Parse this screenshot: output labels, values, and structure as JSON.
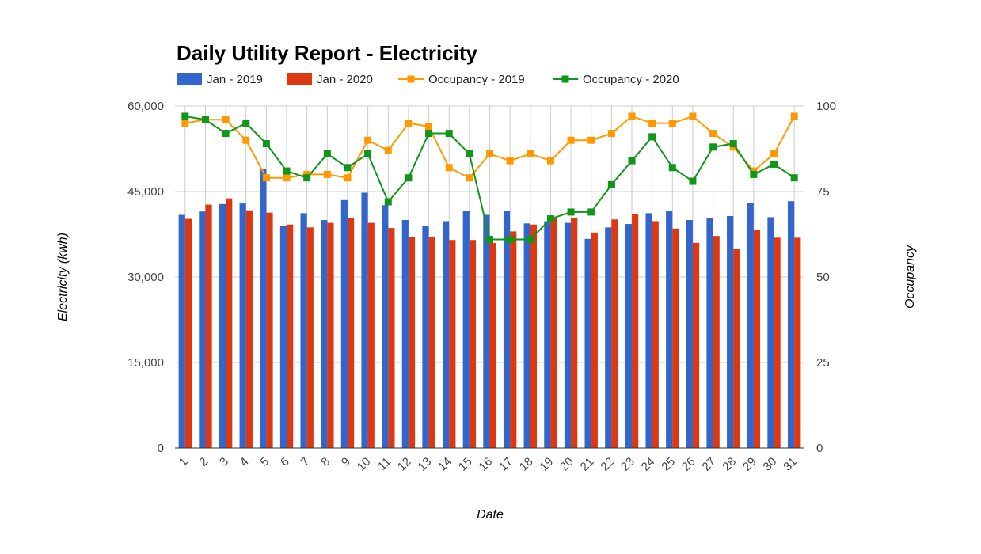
{
  "chart_data": {
    "type": "bar",
    "title": "Daily Utility Report - Electricity",
    "xlabel": "Date",
    "ylabel": "Electricity (kwh)",
    "y2label": "Occupancy",
    "categories": [
      "1",
      "2",
      "3",
      "4",
      "5",
      "6",
      "7",
      "8",
      "9",
      "10",
      "11",
      "12",
      "13",
      "14",
      "15",
      "16",
      "17",
      "18",
      "19",
      "20",
      "21",
      "22",
      "23",
      "24",
      "25",
      "26",
      "27",
      "28",
      "29",
      "30",
      "31"
    ],
    "ylim": [
      0,
      60000
    ],
    "y2lim": [
      0,
      100
    ],
    "yticks": [
      "0",
      "15,000",
      "30,000",
      "45,000",
      "60,000"
    ],
    "y2ticks": [
      "0",
      "25",
      "50",
      "75",
      "100"
    ],
    "grid": true,
    "legend_position": "top",
    "series": [
      {
        "name": "Jan - 2019",
        "type": "bar",
        "axis": "left",
        "color": "#3366cc",
        "values": [
          40900,
          41500,
          42800,
          42900,
          49000,
          39000,
          41200,
          40000,
          43500,
          44800,
          42600,
          40000,
          38900,
          39800,
          41600,
          40900,
          41600,
          39400,
          39800,
          39500,
          36700,
          38700,
          39300,
          41200,
          41600,
          40000,
          40300,
          40700,
          43000,
          40500,
          43300
        ]
      },
      {
        "name": "Jan - 2020",
        "type": "bar",
        "axis": "left",
        "color": "#dc3912",
        "values": [
          40200,
          42700,
          43800,
          41700,
          41300,
          39200,
          38700,
          39500,
          40300,
          39500,
          38600,
          37000,
          37000,
          36500,
          36500,
          36000,
          38000,
          39200,
          40300,
          40300,
          37800,
          40100,
          41100,
          39800,
          38500,
          36000,
          37200,
          35000,
          38200,
          36900,
          36900
        ]
      },
      {
        "name": "Occupancy - 2019",
        "type": "line",
        "axis": "right",
        "color": "#ff9900",
        "values": [
          95,
          96,
          96,
          90,
          79,
          79,
          80,
          80,
          79,
          90,
          87,
          95,
          94,
          82,
          79,
          86,
          84,
          86,
          84,
          90,
          90,
          92,
          97,
          95,
          95,
          97,
          92,
          88,
          81,
          86,
          97
        ]
      },
      {
        "name": "Occupancy - 2020",
        "type": "line",
        "axis": "right",
        "color": "#109618",
        "values": [
          97,
          96,
          92,
          95,
          89,
          81,
          79,
          86,
          82,
          86,
          72,
          79,
          92,
          92,
          86,
          61,
          61,
          61,
          67,
          69,
          69,
          77,
          84,
          91,
          82,
          78,
          88,
          89,
          80,
          83,
          79
        ]
      }
    ]
  }
}
